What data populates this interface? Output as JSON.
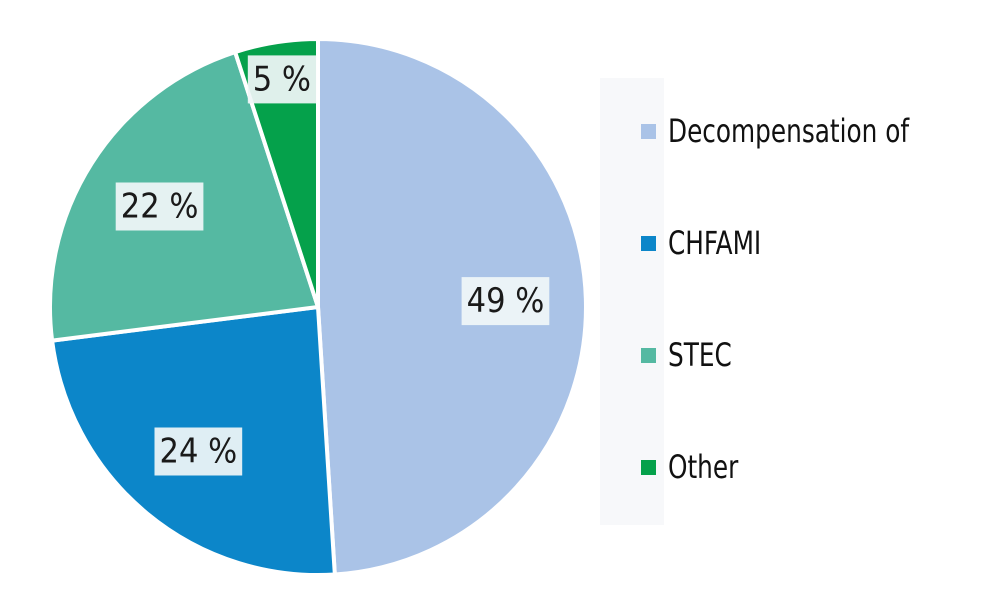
{
  "chart_data": {
    "type": "pie",
    "slices": [
      {
        "label": "Decompensation of",
        "value": 49,
        "data_label": "49 %",
        "color": "#aac3e7"
      },
      {
        "label": "CHFAMI",
        "value": 24,
        "data_label": "24 %",
        "color": "#0c86c9"
      },
      {
        "label": "STEC",
        "value": 22,
        "data_label": "22 %",
        "color": "#55b9a2"
      },
      {
        "label": "Other",
        "value": 5,
        "data_label": "5 %",
        "color": "#05a14b"
      }
    ],
    "legend_position": "right"
  }
}
